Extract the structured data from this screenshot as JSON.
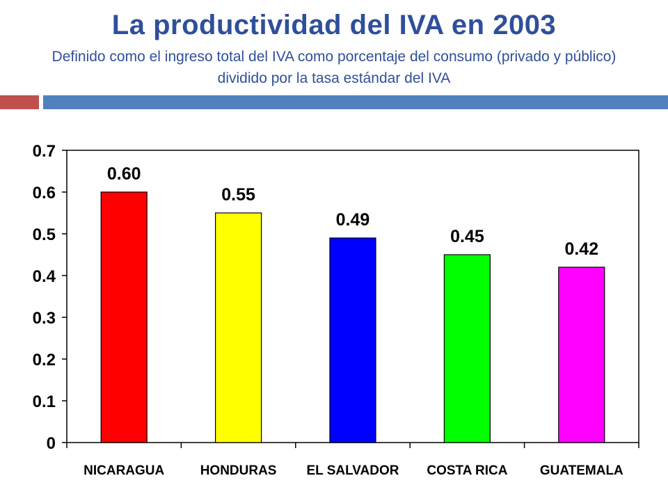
{
  "title": "La productividad del IVA en 2003",
  "subtitle": "Definido como el ingreso total del IVA como porcentaje del consumo (privado y público) dividido por la tasa estándar del IVA",
  "colors": {
    "title": "#2f4f9a",
    "rule_left": "#c0504d",
    "rule_right": "#4f81bd"
  },
  "chart_data": {
    "type": "bar",
    "categories": [
      "NICARAGUA",
      "HONDURAS",
      "EL SALVADOR",
      "COSTA RICA",
      "GUATEMALA"
    ],
    "values": [
      0.6,
      0.55,
      0.49,
      0.45,
      0.42
    ],
    "data_labels": [
      "0.60",
      "0.55",
      "0.49",
      "0.45",
      "0.42"
    ],
    "bar_colors": [
      "#ff0000",
      "#ffff00",
      "#0000ff",
      "#00ff00",
      "#ff00ff"
    ],
    "ylim": [
      0,
      0.7
    ],
    "yticks": [
      0,
      0.1,
      0.2,
      0.3,
      0.4,
      0.5,
      0.6,
      0.7
    ],
    "ytick_labels": [
      "0",
      "0.1",
      "0.2",
      "0.3",
      "0.4",
      "0.5",
      "0.6",
      "0.7"
    ],
    "grid": false,
    "legend": false
  }
}
